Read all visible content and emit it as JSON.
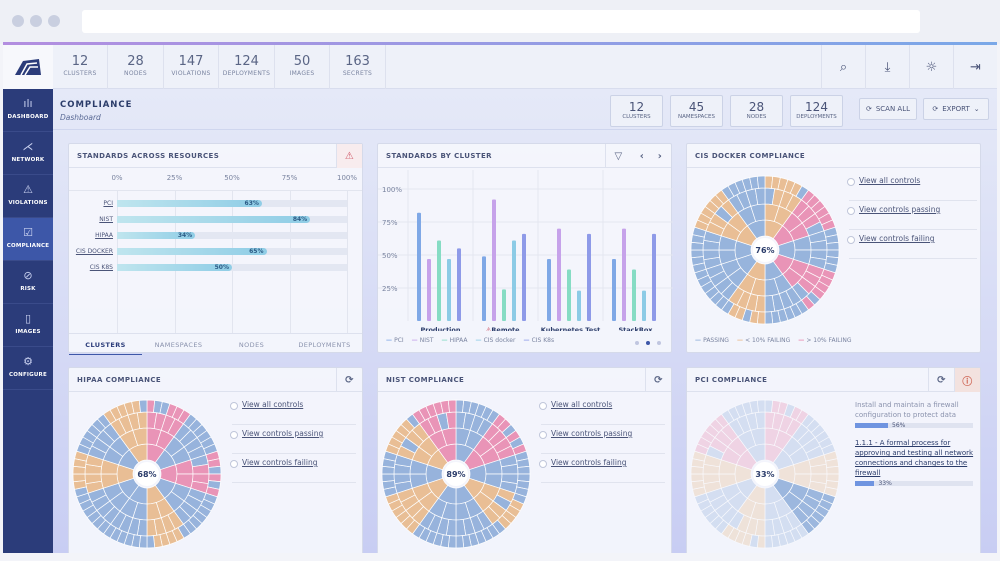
{
  "topbar": {
    "stats": [
      {
        "value": "12",
        "label": "CLUSTERS"
      },
      {
        "value": "28",
        "label": "NODES"
      },
      {
        "value": "147",
        "label": "VIOLATIONS"
      },
      {
        "value": "124",
        "label": "DEPLOYMENTS"
      },
      {
        "value": "50",
        "label": "IMAGES"
      },
      {
        "value": "163",
        "label": "SECRETS"
      }
    ],
    "icons": [
      "search-icon",
      "download-icon",
      "sun-icon",
      "logout-icon"
    ]
  },
  "sidebar": {
    "items": [
      {
        "label": "DASHBOARD",
        "icon": "bar-chart-icon"
      },
      {
        "label": "NETWORK",
        "icon": "network-icon"
      },
      {
        "label": "VIOLATIONS",
        "icon": "warning-icon"
      },
      {
        "label": "COMPLIANCE",
        "icon": "checkbox-icon",
        "active": true
      },
      {
        "label": "RISK",
        "icon": "risk-icon"
      },
      {
        "label": "IMAGES",
        "icon": "file-icon"
      },
      {
        "label": "CONFIGURE",
        "icon": "gear-icon"
      }
    ]
  },
  "header": {
    "title": "COMPLIANCE",
    "subtitle": "Dashboard",
    "stats": [
      {
        "value": "12",
        "label": "CLUSTERS"
      },
      {
        "value": "45",
        "label": "NAMESPACES"
      },
      {
        "value": "28",
        "label": "NODES"
      },
      {
        "value": "124",
        "label": "DEPLOYMENTS"
      }
    ],
    "scan_label": "SCAN ALL",
    "export_label": "EXPORT"
  },
  "standards_across": {
    "title": "STANDARDS ACROSS RESOURCES",
    "ticks": [
      "0%",
      "25%",
      "50%",
      "75%",
      "100%"
    ],
    "rows": [
      {
        "label": "PCI",
        "value": 63,
        "text": "63%"
      },
      {
        "label": "NIST",
        "value": 84,
        "text": "84%"
      },
      {
        "label": "HIPAA",
        "value": 34,
        "text": "34%"
      },
      {
        "label": "CIS DOCKER",
        "value": 65,
        "text": "65%"
      },
      {
        "label": "CIS K8S",
        "value": 50,
        "text": "50%"
      }
    ],
    "tabs": [
      "CLUSTERS",
      "NAMESPACES",
      "NODES",
      "DEPLOYMENTS"
    ]
  },
  "chart_data": {
    "type": "bar",
    "title": "STANDARDS BY CLUSTER",
    "categories": [
      "Production",
      "Remote",
      "Kubernetes Test",
      "StackRox"
    ],
    "ylim": [
      0,
      100
    ],
    "yticks": [
      "100%",
      "75%",
      "50%",
      "25%"
    ],
    "series": [
      {
        "name": "PCI",
        "color": "#7fa8e6",
        "values": [
          82,
          49,
          47,
          47
        ]
      },
      {
        "name": "NIST",
        "color": "#c6a2ea",
        "values": [
          47,
          92,
          70,
          70
        ]
      },
      {
        "name": "HIPAA",
        "color": "#86dcc4",
        "values": [
          61,
          24,
          39,
          39
        ]
      },
      {
        "name": "CIS docker",
        "color": "#8ccbe6",
        "values": [
          47,
          61,
          23,
          23
        ]
      },
      {
        "name": "CIS K8s",
        "color": "#8e9ae8",
        "values": [
          55,
          66,
          66,
          66
        ]
      }
    ],
    "legend": "bottom"
  },
  "cis_docker": {
    "title": "CIS DOCKER COMPLIANCE",
    "percent": "76%",
    "links": [
      "View all controls",
      "View controls passing",
      "View controls failing"
    ],
    "legend": [
      "PASSING",
      "< 10% FAILING",
      "> 10% FAILING"
    ]
  },
  "hipaa": {
    "title": "HIPAA COMPLIANCE",
    "percent": "68%",
    "links": [
      "View all controls",
      "View controls passing",
      "View controls failing"
    ]
  },
  "nist": {
    "title": "NIST COMPLIANCE",
    "percent": "89%",
    "links": [
      "View all controls",
      "View controls passing",
      "View controls failing"
    ]
  },
  "pci": {
    "title": "PCI COMPLIANCE",
    "percent": "33%",
    "items": [
      {
        "text": "Install and maintain a firewall configuration to protect data",
        "value": 56,
        "pct": "56%"
      },
      {
        "text": "1.1.1 - A formal process for approving and testing all network connections and changes to the firewall",
        "value": 33,
        "pct": "33%"
      }
    ]
  },
  "colors": {
    "passing": "#8eadd9",
    "warn": "#e8b98a",
    "fail": "#e88ab0",
    "sidebar": "#2b3c7a"
  }
}
